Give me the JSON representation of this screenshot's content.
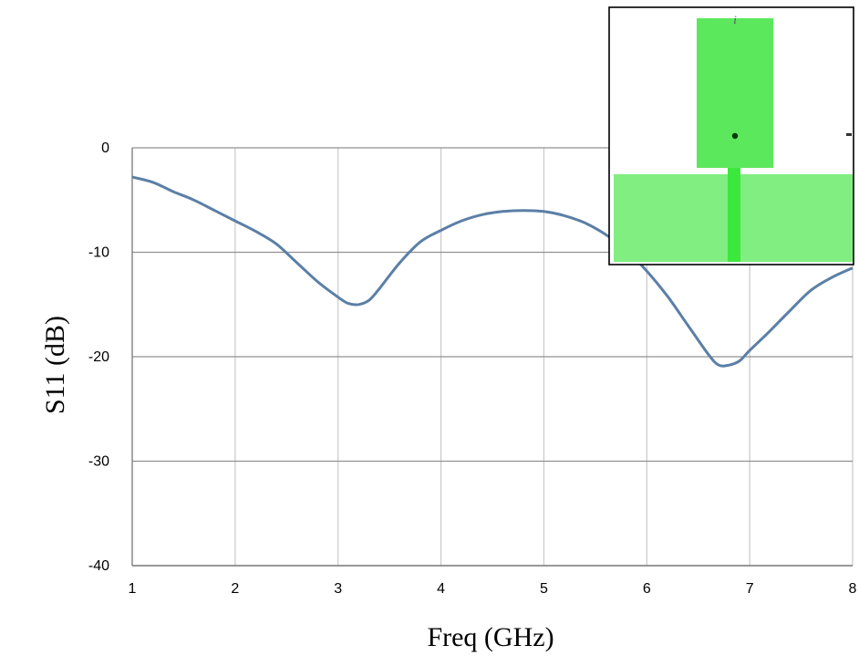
{
  "chart_data": {
    "type": "line",
    "title": "",
    "xlabel": "Freq (GHz)",
    "ylabel": "S11 (dB)",
    "xlim": [
      1,
      8
    ],
    "ylim": [
      -40,
      0
    ],
    "xticks": [
      1,
      2,
      3,
      4,
      5,
      6,
      7,
      8
    ],
    "yticks": [
      0,
      -10,
      -20,
      -30,
      -40
    ],
    "grid": true,
    "series": [
      {
        "color": "#5b7fa6",
        "x": [
          1.0,
          1.2,
          1.4,
          1.6,
          1.8,
          2.0,
          2.2,
          2.4,
          2.6,
          2.8,
          3.0,
          3.1,
          3.2,
          3.3,
          3.4,
          3.6,
          3.8,
          4.0,
          4.2,
          4.4,
          4.6,
          4.8,
          5.0,
          5.2,
          5.4,
          5.6,
          5.8,
          6.0,
          6.2,
          6.4,
          6.6,
          6.7,
          6.8,
          6.9,
          7.0,
          7.2,
          7.4,
          7.6,
          7.8,
          8.0
        ],
        "y": [
          -2.8,
          -3.3,
          -4.2,
          -5.0,
          -6.0,
          -7.0,
          -8.0,
          -9.2,
          -11.0,
          -12.8,
          -14.3,
          -14.9,
          -15.0,
          -14.6,
          -13.5,
          -11.0,
          -9.0,
          -7.9,
          -7.0,
          -6.4,
          -6.1,
          -6.0,
          -6.1,
          -6.5,
          -7.2,
          -8.3,
          -9.8,
          -11.8,
          -14.2,
          -17.0,
          -19.8,
          -20.8,
          -20.8,
          -20.4,
          -19.4,
          -17.5,
          -15.5,
          -13.6,
          -12.4,
          -11.5
        ]
      }
    ]
  },
  "inset": {
    "label": "i"
  }
}
